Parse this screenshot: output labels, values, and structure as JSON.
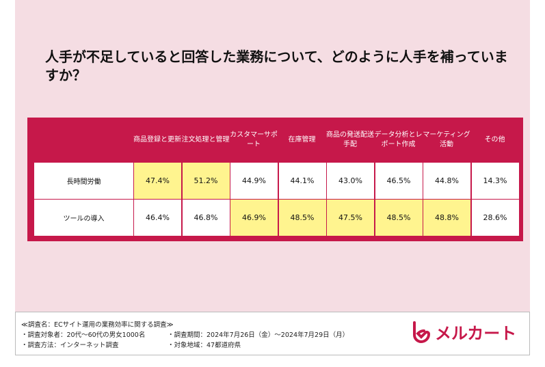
{
  "title": "人手が不足していると回答した業務について、どのように人手を補っていますか？",
  "chart_data": {
    "type": "table",
    "columns": [
      "商品登録と更新",
      "注文処理と管理",
      "カスタマーサポート",
      "在庫管理",
      "商品の発送配送手配",
      "データ分析とレポート作成",
      "マーケティング活動",
      "その他"
    ],
    "rows": [
      {
        "label": "長時間労働",
        "values": [
          "47.4%",
          "51.2%",
          "44.9%",
          "44.1%",
          "43.0%",
          "46.5%",
          "44.8%",
          "14.3%"
        ],
        "highlight": [
          true,
          true,
          false,
          false,
          false,
          false,
          false,
          false
        ]
      },
      {
        "label": "ツールの導入",
        "values": [
          "46.4%",
          "46.8%",
          "46.9%",
          "48.5%",
          "47.5%",
          "48.5%",
          "48.8%",
          "28.6%"
        ],
        "highlight": [
          false,
          false,
          true,
          true,
          true,
          true,
          true,
          false
        ]
      }
    ]
  },
  "colors": {
    "accent": "#c6184a",
    "highlight": "#fff48f",
    "background": "#f5dde3"
  },
  "footer": {
    "survey_name": "≪調査名：ECサイト運用の業務効率に関する調査≫",
    "target": "・調査対象者：20代〜60代の男女1000名",
    "method": "・調査方法：インターネット調査",
    "period": "・調査期間：2024年7月26日（金）〜2024年7月29日（月）",
    "region": "・対象地域：47都道府県"
  },
  "logo": {
    "text": "メルカート"
  }
}
